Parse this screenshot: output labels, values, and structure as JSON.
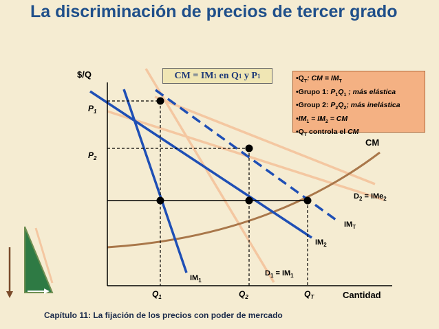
{
  "slide": {
    "title": "La discriminación de precios de tercer grado",
    "footer": "Capítulo 11: La fijación de los precios con poder de mercado"
  },
  "diagram": {
    "y_axis_label": "$/Q",
    "x_axis_label": "Cantidad",
    "price_labels": {
      "p1": "P",
      "p1_sub": "1",
      "p2": "P",
      "p2_sub": "2"
    },
    "quantity_labels": {
      "q1": "Q",
      "q1_sub": "1",
      "q2": "Q",
      "q2_sub": "2",
      "qt": "Q",
      "qt_sub": "T"
    },
    "curve_labels": {
      "cm": "CM",
      "d2": "D",
      "d2_sub": "2",
      "d2_rest": " = IMe",
      "d2_rest_sub": "2",
      "imt": "IM",
      "imt_sub": "T",
      "im2": "IM",
      "im2_sub": "2",
      "im1": "IM",
      "im1_sub": "1",
      "d1": "D",
      "d1_sub": "1",
      "d1_rest": " = IM",
      "d1_rest_sub": "1"
    },
    "colors": {
      "demand_curves": "#f4c7a1",
      "marginal_revenue": "#1f4fb5",
      "marginal_cost": "#a9774a",
      "title": "#1f4f8a"
    }
  },
  "condition_box": {
    "a": "CM = IM",
    "a_sub": "1",
    "b": " en Q",
    "b_sub": "1",
    "c": " y P",
    "c_sub": "1"
  },
  "legend": {
    "l1_a": "•Q",
    "l1_sub": "T",
    "l1_b": ": CM = IM",
    "l1_sub2": "T",
    "l2_a": "•Grupo 1: ",
    "l2_p": "P",
    "l2_p_sub": "1",
    "l2_q": "Q",
    "l2_q_sub": "1",
    "l2_b": " ; más elástica",
    "l3_a": "•Group 2: ",
    "l3_p": "P",
    "l3_p_sub": "2",
    "l3_q": "Q",
    "l3_q_sub": "2",
    "l3_b": "; más inelástica",
    "l4_a": "•IM",
    "l4_sub1": "1",
    "l4_b": " = IM",
    "l4_sub2": "2",
    "l4_c": " = CM",
    "l5_a": "•Q",
    "l5_sub": "T",
    "l5_b": " controla el ",
    "l5_c": "CM"
  }
}
